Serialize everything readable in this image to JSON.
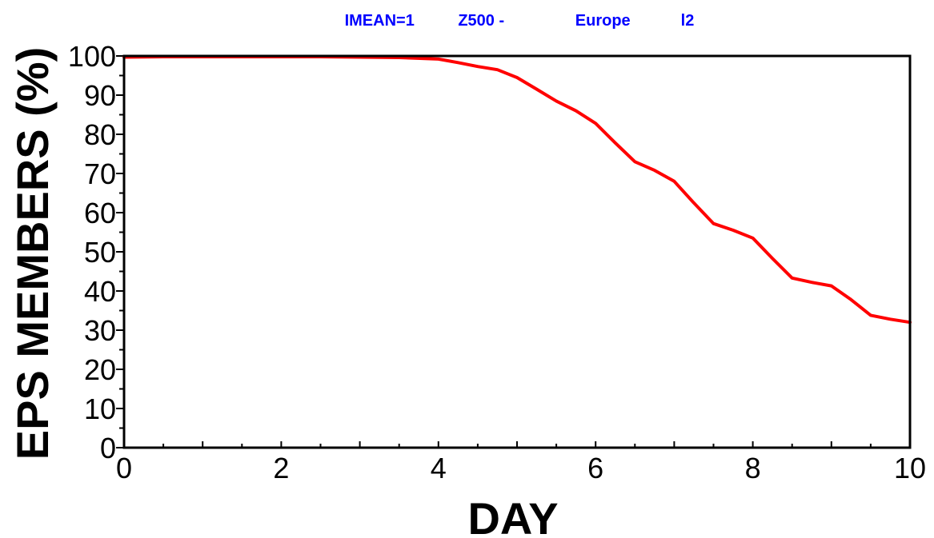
{
  "title_parts": [
    "IMEAN=1",
    "Z500 -",
    "Europe",
    "l2"
  ],
  "colors": {
    "title": "#0000ff",
    "series": "#ff0000",
    "axis": "#000000"
  },
  "chart_data": {
    "type": "line",
    "title": "IMEAN=1 Z500 - Europe l2",
    "xlabel": "DAY",
    "ylabel": "EPS MEMBERS (%)",
    "xlim": [
      0,
      10
    ],
    "ylim": [
      0,
      100
    ],
    "xticks": [
      0,
      2,
      4,
      6,
      8,
      10
    ],
    "yticks": [
      0,
      10,
      20,
      30,
      40,
      50,
      60,
      70,
      80,
      90,
      100
    ],
    "grid": false,
    "legend": "none",
    "series": [
      {
        "x": [
          0,
          0.5,
          1,
          1.5,
          2,
          2.5,
          3,
          3.5,
          4,
          4.25,
          4.5,
          4.75,
          5,
          5.25,
          5.5,
          5.75,
          6,
          6.25,
          6.5,
          6.75,
          7,
          7.25,
          7.5,
          7.75,
          8,
          8.25,
          8.5,
          8.75,
          9,
          9.25,
          9.5,
          9.75,
          10
        ],
        "y": [
          99.7,
          99.8,
          99.8,
          99.8,
          99.8,
          99.8,
          99.7,
          99.6,
          99.2,
          98.3,
          97.3,
          96.5,
          94.5,
          91.5,
          88.5,
          86,
          82.8,
          77.8,
          73,
          70.8,
          68,
          62.5,
          57.2,
          55.5,
          53.5,
          48.3,
          43.3,
          42.2,
          41.3,
          37.8,
          33.8,
          32.8,
          32
        ]
      }
    ]
  }
}
